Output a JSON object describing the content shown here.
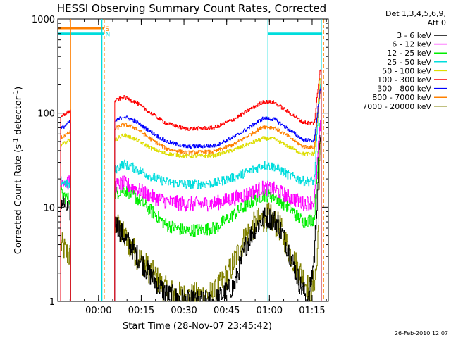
{
  "chart_data": {
    "type": "line",
    "title": "HESSI Observing Summary Count Rates, Corrected",
    "xlabel": "Start Time (28-Nov-07 23:45:42)",
    "ylabel_main": "Corrected Count Rate (s",
    "ylabel_sup1": "-1",
    "ylabel_mid": " detector",
    "ylabel_sup2": "-1",
    "ylabel_end": ")",
    "y_scale": "log",
    "ylim": [
      1,
      1000
    ],
    "x_unit": "minutes since 23:45:42",
    "xlim": [
      0,
      95
    ],
    "x_ticks": [
      {
        "x": 14.3,
        "label": "00:00"
      },
      {
        "x": 29.3,
        "label": "00:15"
      },
      {
        "x": 44.3,
        "label": "00:30"
      },
      {
        "x": 59.3,
        "label": "00:45"
      },
      {
        "x": 74.3,
        "label": "01:00"
      },
      {
        "x": 89.3,
        "label": "01:15"
      }
    ],
    "y_ticks": [
      {
        "y": 1,
        "label": "1"
      },
      {
        "y": 10,
        "label": "10"
      },
      {
        "y": 100,
        "label": "100"
      },
      {
        "y": 1000,
        "label": "1000"
      }
    ],
    "legend_header_1": "Det 1,3,4,5,6,9,",
    "legend_header_2": "Att 0",
    "legend_placement": "right, outside plot",
    "segments": [
      [
        1,
        4.5
      ],
      [
        20,
        92.5
      ]
    ],
    "series": [
      {
        "name": "3 - 6 keV",
        "color": "#000000",
        "noise": 0.12,
        "values": [
          [
            1,
            12
          ],
          [
            4,
            9
          ],
          [
            20,
            7
          ],
          [
            23,
            5
          ],
          [
            28,
            3
          ],
          [
            33,
            1.8
          ],
          [
            38,
            1.2
          ],
          [
            45,
            1
          ],
          [
            55,
            1
          ],
          [
            62,
            1.5
          ],
          [
            66,
            4
          ],
          [
            69,
            6
          ],
          [
            73,
            8
          ],
          [
            77,
            7
          ],
          [
            81,
            3.5
          ],
          [
            85,
            1.5
          ],
          [
            88,
            1
          ],
          [
            90,
            3
          ],
          [
            92,
            60
          ]
        ]
      },
      {
        "name": "6 - 12 keV",
        "color": "#ff00ff",
        "noise": 0.08,
        "values": [
          [
            1,
            20
          ],
          [
            4,
            18
          ],
          [
            20,
            17
          ],
          [
            23,
            18
          ],
          [
            27,
            16
          ],
          [
            33,
            13
          ],
          [
            38,
            11.5
          ],
          [
            45,
            10.8
          ],
          [
            55,
            11
          ],
          [
            62,
            12.5
          ],
          [
            67,
            14
          ],
          [
            72,
            16
          ],
          [
            76,
            15.5
          ],
          [
            81,
            13
          ],
          [
            86,
            11
          ],
          [
            90,
            11.5
          ],
          [
            92,
            70
          ]
        ]
      },
      {
        "name": "12 - 25 keV",
        "color": "#00ee00",
        "noise": 0.07,
        "values": [
          [
            1,
            14
          ],
          [
            4,
            12
          ],
          [
            20,
            14
          ],
          [
            23,
            15.5
          ],
          [
            27,
            13
          ],
          [
            33,
            9
          ],
          [
            38,
            6.5
          ],
          [
            45,
            5.6
          ],
          [
            55,
            6
          ],
          [
            62,
            8.5
          ],
          [
            67,
            11
          ],
          [
            72,
            13.5
          ],
          [
            76,
            13
          ],
          [
            81,
            10
          ],
          [
            86,
            7
          ],
          [
            90,
            7.5
          ],
          [
            92,
            80
          ]
        ]
      },
      {
        "name": "25 - 50 keV",
        "color": "#00dddd",
        "noise": 0.05,
        "values": [
          [
            1,
            19
          ],
          [
            4,
            17
          ],
          [
            20,
            25
          ],
          [
            23,
            29
          ],
          [
            27,
            26
          ],
          [
            33,
            21
          ],
          [
            38,
            18.5
          ],
          [
            45,
            17.5
          ],
          [
            55,
            18
          ],
          [
            62,
            21
          ],
          [
            67,
            24
          ],
          [
            72,
            28
          ],
          [
            76,
            27
          ],
          [
            81,
            22
          ],
          [
            86,
            19
          ],
          [
            90,
            19
          ],
          [
            92,
            200
          ]
        ]
      },
      {
        "name": "50 - 100 keV",
        "color": "#dddd00",
        "noise": 0.02,
        "values": [
          [
            1,
            45
          ],
          [
            4,
            52
          ],
          [
            20,
            52
          ],
          [
            23,
            59
          ],
          [
            27,
            53
          ],
          [
            33,
            42
          ],
          [
            38,
            37
          ],
          [
            45,
            35
          ],
          [
            55,
            35.5
          ],
          [
            62,
            41
          ],
          [
            67,
            47
          ],
          [
            72,
            54
          ],
          [
            76,
            53
          ],
          [
            81,
            44
          ],
          [
            86,
            37
          ],
          [
            90,
            37
          ],
          [
            92,
            230
          ]
        ]
      },
      {
        "name": "100 - 300 keV",
        "color": "#ff0000",
        "noise": 0.02,
        "values": [
          [
            1,
            90
          ],
          [
            4,
            105
          ],
          [
            20,
            135
          ],
          [
            23,
            148
          ],
          [
            27,
            132
          ],
          [
            33,
            98
          ],
          [
            38,
            78
          ],
          [
            45,
            68
          ],
          [
            55,
            70
          ],
          [
            62,
            87
          ],
          [
            67,
            108
          ],
          [
            72,
            132
          ],
          [
            76,
            130
          ],
          [
            81,
            102
          ],
          [
            86,
            80
          ],
          [
            90,
            78
          ],
          [
            92,
            290
          ]
        ]
      },
      {
        "name": "300 - 800 keV",
        "color": "#0000ff",
        "noise": 0.02,
        "values": [
          [
            1,
            68
          ],
          [
            4,
            80
          ],
          [
            20,
            82
          ],
          [
            23,
            92
          ],
          [
            27,
            83
          ],
          [
            33,
            62
          ],
          [
            38,
            50
          ],
          [
            45,
            44
          ],
          [
            55,
            45
          ],
          [
            62,
            56
          ],
          [
            67,
            70
          ],
          [
            72,
            88
          ],
          [
            76,
            86
          ],
          [
            81,
            67
          ],
          [
            86,
            52
          ],
          [
            90,
            51
          ],
          [
            92,
            180
          ]
        ]
      },
      {
        "name": "800 - 7000 keV",
        "color": "#ff8000",
        "noise": 0.02,
        "values": [
          [
            1,
            55
          ],
          [
            4,
            62
          ],
          [
            20,
            68
          ],
          [
            23,
            76
          ],
          [
            27,
            70
          ],
          [
            33,
            52
          ],
          [
            38,
            42
          ],
          [
            45,
            38
          ],
          [
            55,
            39
          ],
          [
            62,
            47
          ],
          [
            67,
            58
          ],
          [
            72,
            72
          ],
          [
            76,
            70
          ],
          [
            81,
            56
          ],
          [
            86,
            44
          ],
          [
            90,
            43
          ],
          [
            92,
            170
          ]
        ]
      },
      {
        "name": "7000 - 20000 keV",
        "color": "#808000",
        "noise": 0.15,
        "values": [
          [
            1,
            4
          ],
          [
            4,
            3
          ],
          [
            20,
            7
          ],
          [
            23,
            5
          ],
          [
            28,
            3
          ],
          [
            33,
            2
          ],
          [
            38,
            1.3
          ],
          [
            45,
            1.1
          ],
          [
            55,
            1.2
          ],
          [
            60,
            2
          ],
          [
            66,
            5
          ],
          [
            70,
            7
          ],
          [
            74,
            8
          ],
          [
            78,
            6
          ],
          [
            82,
            3
          ],
          [
            86,
            1.8
          ],
          [
            89,
            1.2
          ],
          [
            91,
            2.5
          ],
          [
            92,
            40
          ]
        ]
      }
    ],
    "flags": [
      {
        "label": "S",
        "color": "#ff8000",
        "from": 0,
        "to": 16.2,
        "level": 800
      },
      {
        "label": "N",
        "color": "#00dddd",
        "from": 0,
        "to": 16.2,
        "level": 700,
        "from2": 73.8,
        "to2": 92.8
      }
    ],
    "markers": [
      {
        "x": 15.5,
        "color": "#00dddd",
        "style": "solid"
      },
      {
        "x": 16.3,
        "color": "#ff8000",
        "style": "dashed"
      },
      {
        "x": 73.8,
        "color": "#00dddd",
        "style": "solid"
      },
      {
        "x": 92.5,
        "color": "#00dddd",
        "style": "solid"
      },
      {
        "x": 93.3,
        "color": "#ff8000",
        "style": "dashed"
      },
      {
        "x": 4.5,
        "color": "#ff8000",
        "style": "solid"
      }
    ]
  },
  "footer_timestamp": "26-Feb-2010 12:07"
}
